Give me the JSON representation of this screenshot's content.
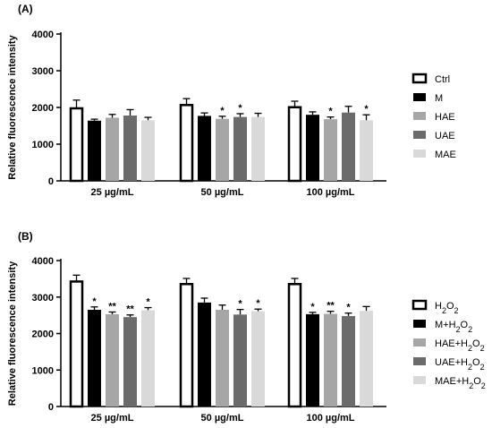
{
  "chart_data": [
    {
      "panel_label": "(A)",
      "type": "bar",
      "ylabel": "Relative  fluorescence intensity",
      "ylim": [
        0,
        4000
      ],
      "yticks": [
        0,
        1000,
        2000,
        3000,
        4000
      ],
      "categories": [
        "25 µg/mL",
        "50 µg/mL",
        "100 µg/mL"
      ],
      "legend_position": "right",
      "series": [
        {
          "name": "Ctrl",
          "color": "#ffffff",
          "values": [
            2000,
            2090,
            2030
          ],
          "errors": [
            200,
            150,
            140
          ],
          "significance": [
            "",
            "",
            ""
          ]
        },
        {
          "name": "M",
          "color": "#000000",
          "values": [
            1640,
            1770,
            1800
          ],
          "errors": [
            40,
            80,
            80
          ],
          "significance": [
            "",
            "",
            ""
          ]
        },
        {
          "name": "HAE",
          "color": "#a6a6a6",
          "values": [
            1720,
            1690,
            1680
          ],
          "errors": [
            90,
            70,
            60
          ],
          "significance": [
            "",
            "*",
            "*"
          ]
        },
        {
          "name": "UAE",
          "color": "#6b6b6b",
          "values": [
            1780,
            1740,
            1860
          ],
          "errors": [
            160,
            90,
            170
          ],
          "significance": [
            "",
            "*",
            ""
          ]
        },
        {
          "name": "MAE",
          "color": "#d9d9d9",
          "values": [
            1650,
            1740,
            1650
          ],
          "errors": [
            80,
            100,
            150
          ],
          "significance": [
            "",
            "",
            "*"
          ]
        }
      ]
    },
    {
      "panel_label": "(B)",
      "type": "bar",
      "ylabel": "Relative  fluorescence intensity",
      "ylim": [
        0,
        4000
      ],
      "yticks": [
        0,
        1000,
        2000,
        3000,
        4000
      ],
      "categories": [
        "25 µg/mL",
        "50 µg/mL",
        "100 µg/mL"
      ],
      "legend_position": "right",
      "series": [
        {
          "name": "H2O2",
          "color": "#ffffff",
          "values": [
            3450,
            3380,
            3380
          ],
          "errors": [
            150,
            130,
            130
          ],
          "significance": [
            "",
            "",
            ""
          ]
        },
        {
          "name": "M+H2O2",
          "color": "#000000",
          "values": [
            2650,
            2850,
            2530
          ],
          "errors": [
            80,
            120,
            50
          ],
          "significance": [
            "*",
            "",
            "*"
          ]
        },
        {
          "name": "HAE+H2O2",
          "color": "#a6a6a6",
          "values": [
            2530,
            2650,
            2540
          ],
          "errors": [
            60,
            130,
            70
          ],
          "significance": [
            "**",
            "",
            "**"
          ]
        },
        {
          "name": "UAE+H2O2",
          "color": "#6b6b6b",
          "values": [
            2450,
            2520,
            2480
          ],
          "errors": [
            60,
            140,
            80
          ],
          "significance": [
            "**",
            "*",
            "*"
          ]
        },
        {
          "name": "MAE+H2O2",
          "color": "#d9d9d9",
          "values": [
            2640,
            2610,
            2620
          ],
          "errors": [
            70,
            60,
            120
          ],
          "significance": [
            "*",
            "*",
            ""
          ]
        }
      ]
    }
  ]
}
